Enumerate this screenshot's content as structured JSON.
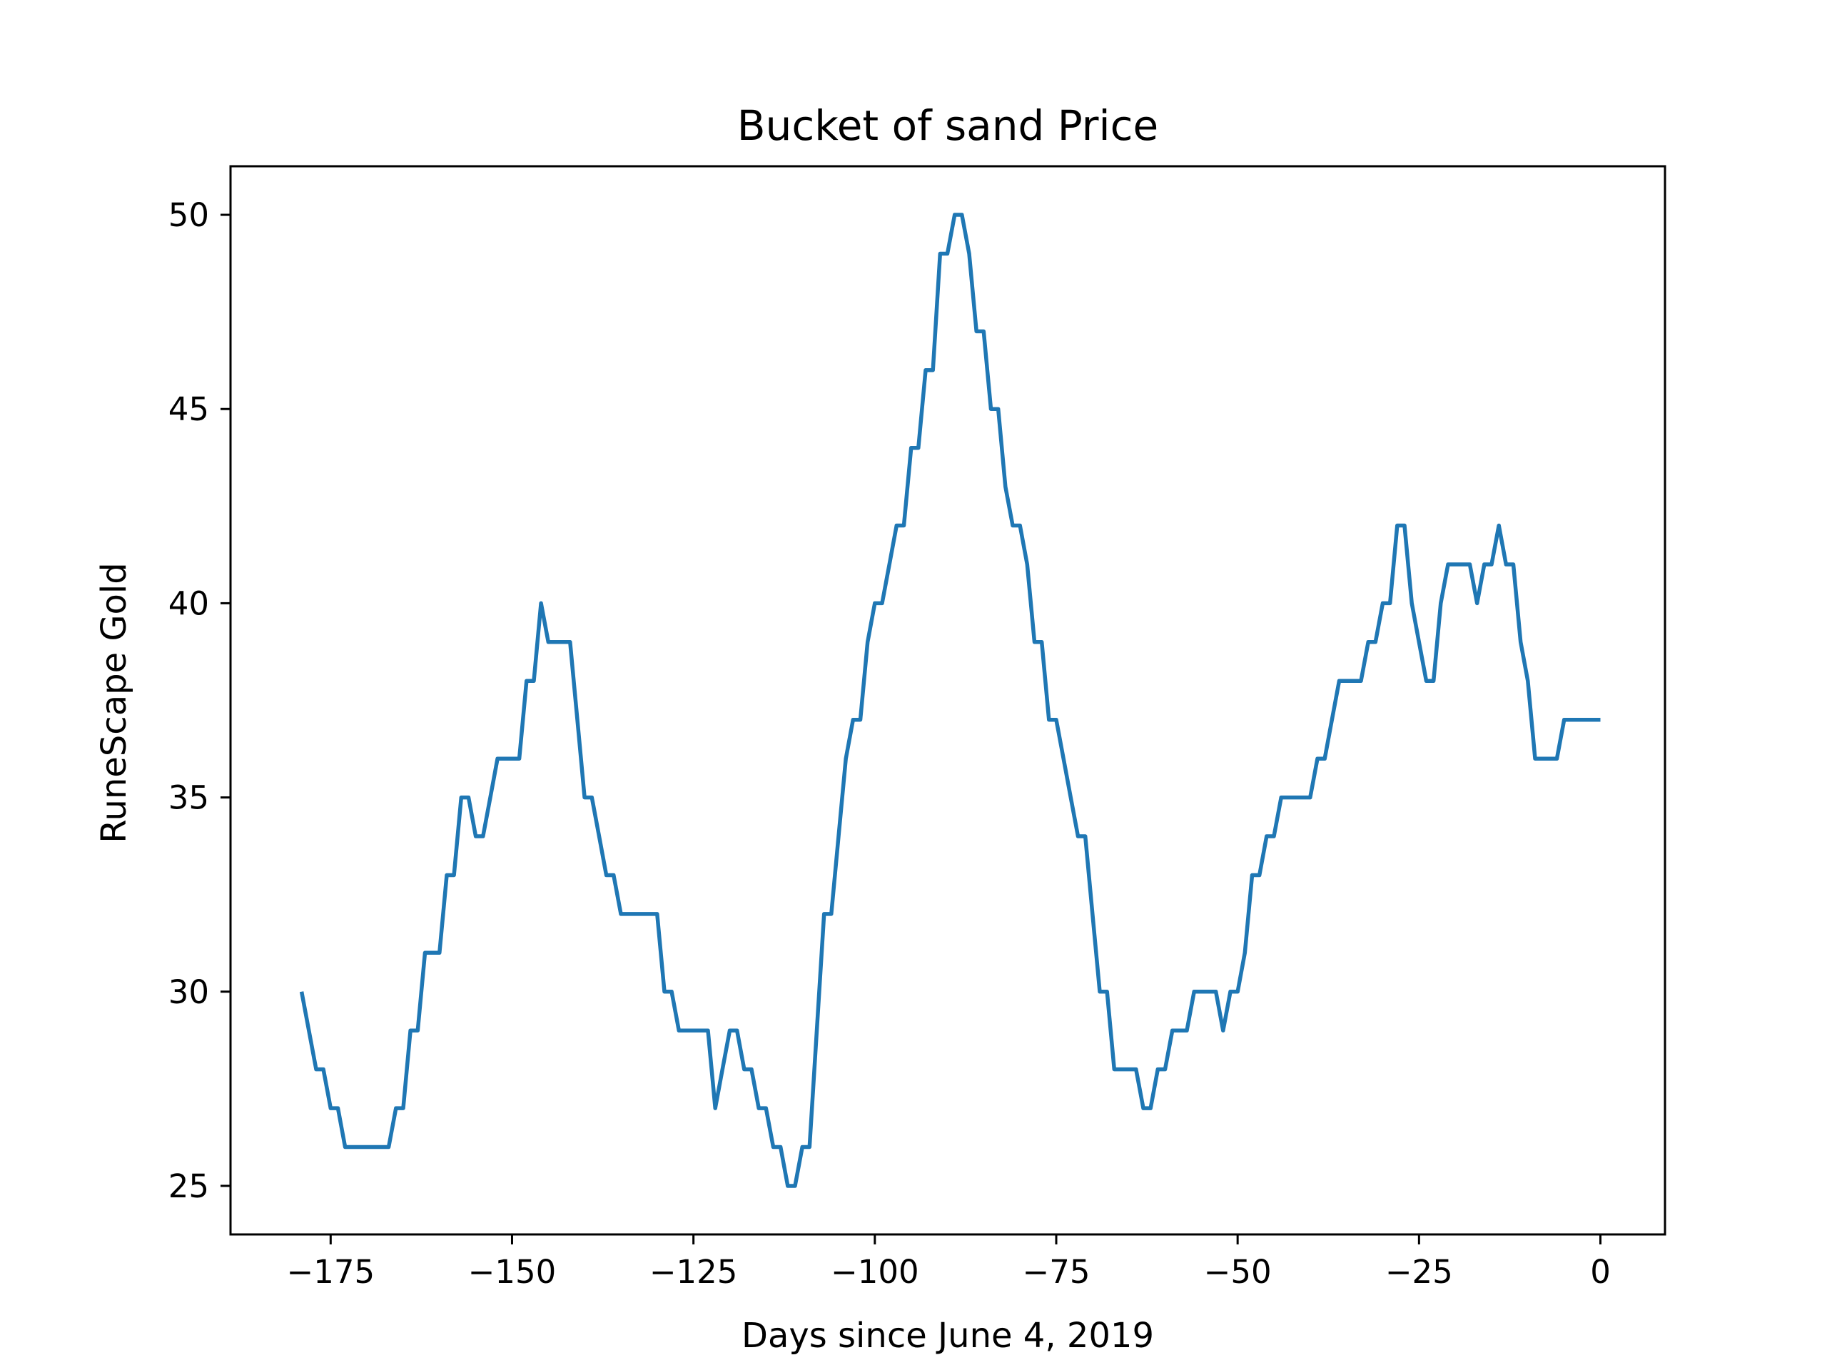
{
  "chart_data": {
    "type": "line",
    "title": "Bucket of sand Price",
    "xlabel": "Days since June 4, 2019",
    "ylabel": "RuneScape Gold",
    "xlim": [
      -188.8,
      8.9
    ],
    "ylim": [
      23.75,
      51.25
    ],
    "grid": false,
    "xticks": [
      -175,
      -150,
      -125,
      -100,
      -75,
      -50,
      -25,
      0
    ],
    "xtick_labels": [
      "−175",
      "−150",
      "−125",
      "−100",
      "−75",
      "−50",
      "−25",
      "0"
    ],
    "yticks": [
      25,
      30,
      35,
      40,
      45,
      50
    ],
    "ytick_labels": [
      "25",
      "30",
      "35",
      "40",
      "45",
      "50"
    ],
    "series": [
      {
        "color": "#1f77b4",
        "x": [
          -179,
          -178,
          -177,
          -176,
          -175,
          -174,
          -173,
          -172,
          -171,
          -170,
          -169,
          -168,
          -167,
          -166,
          -165,
          -164,
          -163,
          -162,
          -161,
          -160,
          -159,
          -158,
          -157,
          -156,
          -155,
          -154,
          -153,
          -152,
          -151,
          -150,
          -149,
          -148,
          -147,
          -146,
          -145,
          -144,
          -143,
          -142,
          -141,
          -140,
          -139,
          -138,
          -137,
          -136,
          -135,
          -134,
          -133,
          -132,
          -131,
          -130,
          -129,
          -128,
          -127,
          -126,
          -125,
          -124,
          -123,
          -122,
          -121,
          -120,
          -119,
          -118,
          -117,
          -116,
          -115,
          -114,
          -113,
          -112,
          -111,
          -110,
          -109,
          -108,
          -107,
          -106,
          -105,
          -104,
          -103,
          -102,
          -101,
          -100,
          -99,
          -98,
          -97,
          -96,
          -95,
          -94,
          -93,
          -92,
          -91,
          -90,
          -89,
          -88,
          -87,
          -86,
          -85,
          -84,
          -83,
          -82,
          -81,
          -80,
          -79,
          -78,
          -77,
          -76,
          -75,
          -74,
          -73,
          -72,
          -71,
          -70,
          -69,
          -68,
          -67,
          -66,
          -65,
          -64,
          -63,
          -62,
          -61,
          -60,
          -59,
          -58,
          -57,
          -56,
          -55,
          -54,
          -53,
          -52,
          -51,
          -50,
          -49,
          -48,
          -47,
          -46,
          -45,
          -44,
          -43,
          -42,
          -41,
          -40,
          -39,
          -38,
          -37,
          -36,
          -35,
          -34,
          -33,
          -32,
          -31,
          -30,
          -29,
          -28,
          -27,
          -26,
          -25,
          -24,
          -23,
          -22,
          -21,
          -20,
          -19,
          -18,
          -17,
          -16,
          -15,
          -14,
          -13,
          -12,
          -11,
          -10,
          -9,
          -8,
          -7,
          -6,
          -5,
          -4,
          -3,
          -2,
          -1,
          0
        ],
        "y": [
          30,
          29,
          28,
          28,
          27,
          27,
          26,
          26,
          26,
          26,
          26,
          26,
          26,
          27,
          27,
          29,
          29,
          31,
          31,
          31,
          33,
          33,
          35,
          35,
          34,
          34,
          35,
          36,
          36,
          36,
          36,
          38,
          38,
          40,
          39,
          39,
          39,
          39,
          37,
          35,
          35,
          34,
          33,
          33,
          32,
          32,
          32,
          32,
          32,
          32,
          30,
          30,
          29,
          29,
          29,
          29,
          29,
          27,
          28,
          29,
          29,
          28,
          28,
          27,
          27,
          26,
          26,
          25,
          25,
          26,
          26,
          29,
          32,
          32,
          34,
          36,
          37,
          37,
          39,
          40,
          40,
          41,
          42,
          42,
          44,
          44,
          46,
          46,
          49,
          49,
          50,
          50,
          49,
          47,
          47,
          45,
          45,
          43,
          42,
          42,
          41,
          39,
          39,
          37,
          37,
          36,
          35,
          34,
          34,
          32,
          30,
          30,
          28,
          28,
          28,
          28,
          27,
          27,
          28,
          28,
          29,
          29,
          29,
          30,
          30,
          30,
          30,
          29,
          30,
          30,
          31,
          33,
          33,
          34,
          34,
          35,
          35,
          35,
          35,
          35,
          36,
          36,
          37,
          38,
          38,
          38,
          38,
          39,
          39,
          40,
          40,
          42,
          42,
          40,
          39,
          38,
          38,
          40,
          41,
          41,
          41,
          41,
          40,
          41,
          41,
          42,
          41,
          41,
          39,
          38,
          36,
          36,
          36,
          36,
          37,
          37,
          37,
          37,
          37,
          37
        ]
      }
    ]
  }
}
